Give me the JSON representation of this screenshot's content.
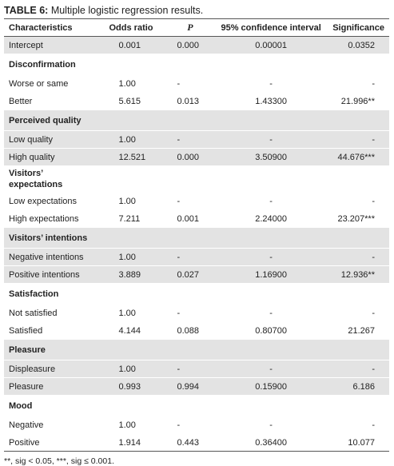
{
  "title": {
    "label": "TABLE 6:",
    "text": "Multiple logistic regression results."
  },
  "columns": [
    "Characteristics",
    "Odds ratio",
    "P",
    "95% confidence interval",
    "Significance"
  ],
  "rows": [
    [
      "Intercept",
      "0.001",
      "0.000",
      "0.00001",
      "0.0352"
    ],
    [
      "Disconfirmation"
    ],
    [
      "Worse or same",
      "1.00",
      "-",
      "-",
      "-"
    ],
    [
      "Better",
      "5.615",
      "0.013",
      "1.43300",
      "21.996**"
    ],
    [
      "Perceived quality"
    ],
    [
      "Low quality",
      "1.00",
      "-",
      "-",
      "-"
    ],
    [
      "High quality",
      "12.521",
      "0.000",
      "3.50900",
      "44.676***"
    ],
    [
      "Visitors’ expectations"
    ],
    [
      "Low expectations",
      "1.00",
      "-",
      "-",
      "-"
    ],
    [
      "High expectations",
      "7.211",
      "0.001",
      "2.24000",
      "23.207***"
    ],
    [
      "Visitors’ intentions"
    ],
    [
      "Negative intentions",
      "1.00",
      "-",
      "-",
      "-"
    ],
    [
      "Positive intentions",
      "3.889",
      "0.027",
      "1.16900",
      "12.936**"
    ],
    [
      "Satisfaction"
    ],
    [
      "Not satisfied",
      "1.00",
      "-",
      "-",
      "-"
    ],
    [
      "Satisfied",
      "4.144",
      "0.088",
      "0.80700",
      "21.267"
    ],
    [
      "Pleasure"
    ],
    [
      "Displeasure",
      "1.00",
      "-",
      "-",
      "-"
    ],
    [
      "Pleasure",
      "0.993",
      "0.994",
      "0.15900",
      "6.186"
    ],
    [
      "Mood"
    ],
    [
      "Negative",
      "1.00",
      "-",
      "-",
      "-"
    ],
    [
      "Positive",
      "1.914",
      "0.443",
      "0.36400",
      "10.077"
    ]
  ],
  "footnote": "**, sig < 0.05, ***, sig ≤ 0.001."
}
